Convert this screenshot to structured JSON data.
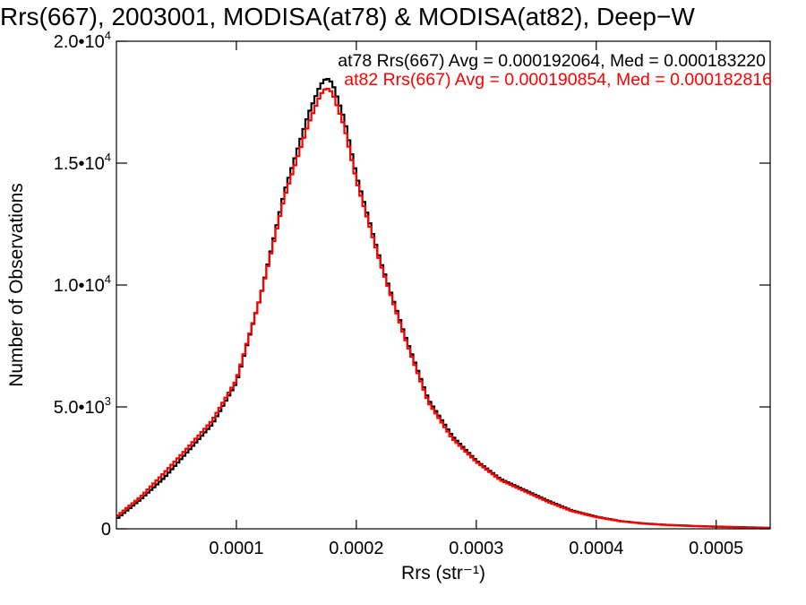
{
  "chart_data": {
    "type": "line",
    "title": "Rrs(667), 2003001, MODISA(at78) & MODISA(at82), Deep−W",
    "xlabel": "Rrs (str⁻¹)",
    "ylabel": "Number of Observations",
    "xlim": [
      0.0,
      0.000545
    ],
    "ylim": [
      0,
      20000
    ],
    "x_ticks": [
      0.0001,
      0.0002,
      0.0003,
      0.0004,
      0.0005
    ],
    "x_tick_labels": [
      "0.0001",
      "0.0002",
      "0.0003",
      "0.0004",
      "0.0005"
    ],
    "y_ticks": [
      0,
      5000,
      10000,
      15000,
      20000
    ],
    "y_tick_labels": [
      {
        "base": "0",
        "exp": ""
      },
      {
        "base": "5.0•10",
        "exp": "3"
      },
      {
        "base": "1.0•10",
        "exp": "4"
      },
      {
        "base": "1.5•10",
        "exp": "4"
      },
      {
        "base": "2.0•10",
        "exp": "4"
      }
    ],
    "grid": false,
    "legend_placement": "top-right",
    "series": [
      {
        "name": "at78",
        "color": "#000000",
        "annotation": "at78 Rrs(667) Avg = 0.000192064, Med = 0.000183220",
        "x": [
          0.0,
          2e-05,
          4e-05,
          6e-05,
          8e-05,
          0.0001,
          0.00012,
          0.00014,
          0.00016,
          0.00017,
          0.000175,
          0.00018,
          0.00019,
          0.0002,
          0.00022,
          0.00024,
          0.00026,
          0.00028,
          0.0003,
          0.00032,
          0.00034,
          0.00036,
          0.00038,
          0.0004,
          0.00042,
          0.00044,
          0.00046,
          0.00048,
          0.0005,
          0.00052,
          0.000545
        ],
        "y": [
          400,
          1200,
          2100,
          3200,
          4300,
          6000,
          9500,
          13800,
          17000,
          18200,
          18500,
          18300,
          16800,
          14500,
          11000,
          8000,
          5300,
          3800,
          2800,
          2050,
          1600,
          1150,
          750,
          500,
          320,
          220,
          160,
          120,
          90,
          70,
          40
        ]
      },
      {
        "name": "at82",
        "color": "#ff0000",
        "annotation": "at82 Rrs(667) Avg = 0.000190854, Med = 0.000182816",
        "x": [
          0.0,
          2e-05,
          4e-05,
          6e-05,
          8e-05,
          0.0001,
          0.00012,
          0.00014,
          0.00016,
          0.00017,
          0.000175,
          0.00018,
          0.00019,
          0.0002,
          0.00022,
          0.00024,
          0.00026,
          0.00028,
          0.0003,
          0.00032,
          0.00034,
          0.00036,
          0.00038,
          0.0004,
          0.00042,
          0.00044,
          0.00046,
          0.00048,
          0.0005,
          0.00052,
          0.000545
        ],
        "y": [
          500,
          1300,
          2300,
          3350,
          4450,
          6100,
          9500,
          13600,
          16600,
          17800,
          18100,
          17900,
          16500,
          14300,
          10900,
          7900,
          5200,
          3700,
          2750,
          2000,
          1550,
          1100,
          720,
          480,
          310,
          210,
          150,
          110,
          80,
          60,
          30
        ]
      }
    ]
  }
}
